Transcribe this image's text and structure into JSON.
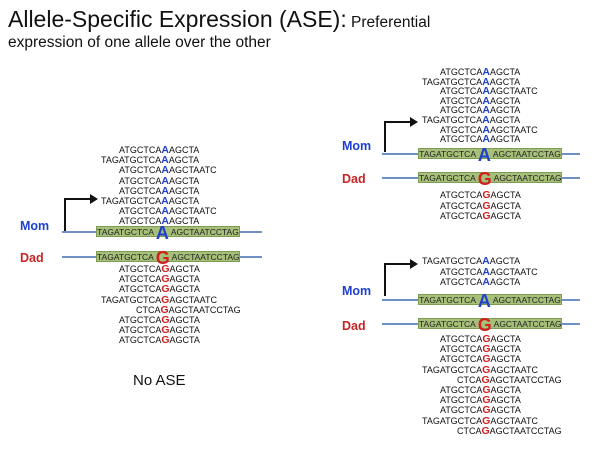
{
  "title": {
    "main": "Allele-Specific Expression (ASE):",
    "sub": " Preferential",
    "line2": "expression of one allele over the other"
  },
  "colors": {
    "mom": "#1f3fcf",
    "dad": "#d22020",
    "chromosome": "#6f90c4",
    "gene": "#a7c079"
  },
  "labels": {
    "mom": "Mom",
    "dad": "Dad"
  },
  "no_ase_caption": "No ASE",
  "left_panel": {
    "mom_gene": {
      "pre": "TAGATGCTCA",
      "allele": "A",
      "post": "AGCTAATCCTAG"
    },
    "dad_gene": {
      "pre": "TAGATGCTCA",
      "allele": "G",
      "post": "AGCTAATCCTAG"
    },
    "mom_reads": [
      {
        "pre": "ATGCTCA",
        "nt": "A",
        "post": "AGCTA"
      },
      {
        "pre": "TAGATGCTCA",
        "nt": "A",
        "post": "AGCTA"
      },
      {
        "pre": "ATGCTCA",
        "nt": "A",
        "post": "AGCTAATC"
      },
      {
        "pre": "ATGCTCA",
        "nt": "A",
        "post": "AGCTA"
      },
      {
        "pre": "ATGCTCA",
        "nt": "A",
        "post": "AGCTA"
      },
      {
        "pre": "TAGATGCTCA",
        "nt": "A",
        "post": "AGCTA"
      },
      {
        "pre": "ATGCTCA",
        "nt": "A",
        "post": "AGCTAATC"
      },
      {
        "pre": "ATGCTCA",
        "nt": "A",
        "post": "AGCTA"
      }
    ],
    "dad_reads": [
      {
        "pre": "ATGCTCA",
        "nt": "G",
        "post": "AGCTA"
      },
      {
        "pre": "ATGCTCA",
        "nt": "G",
        "post": "AGCTA"
      },
      {
        "pre": "ATGCTCA",
        "nt": "G",
        "post": "AGCTA"
      },
      {
        "pre": "TAGATGCTCA",
        "nt": "G",
        "post": "AGCTAATC"
      },
      {
        "pre": "CTCA",
        "nt": "G",
        "post": "AGCTAATCCTAG"
      },
      {
        "pre": "ATGCTCA",
        "nt": "G",
        "post": "AGCTA"
      },
      {
        "pre": "ATGCTCA",
        "nt": "G",
        "post": "AGCTA"
      },
      {
        "pre": "ATGCTCA",
        "nt": "G",
        "post": "AGCTA"
      }
    ]
  },
  "right_top_panel": {
    "mom_gene": {
      "pre": "TAGATGCTCA",
      "allele": "A",
      "post": "AGCTAATCCTAG"
    },
    "dad_gene": {
      "pre": "TAGATGCTCA",
      "allele": "G",
      "post": "AGCTAATCCTAG"
    },
    "mom_reads": [
      {
        "pre": "ATGCTCA",
        "nt": "A",
        "post": "AGCTA"
      },
      {
        "pre": "TAGATGCTCA",
        "nt": "A",
        "post": "AGCTA"
      },
      {
        "pre": "ATGCTCA",
        "nt": "A",
        "post": "AGCTAATC"
      },
      {
        "pre": "ATGCTCA",
        "nt": "A",
        "post": "AGCTA"
      },
      {
        "pre": "ATGCTCA",
        "nt": "A",
        "post": "AGCTA"
      },
      {
        "pre": "TAGATGCTCA",
        "nt": "A",
        "post": "AGCTA"
      },
      {
        "pre": "ATGCTCA",
        "nt": "A",
        "post": "AGCTAATC"
      },
      {
        "pre": "ATGCTCA",
        "nt": "A",
        "post": "AGCTA"
      }
    ],
    "dad_reads": [
      {
        "pre": "ATGCTCA",
        "nt": "G",
        "post": "AGCTA"
      },
      {
        "pre": "ATGCTCA",
        "nt": "G",
        "post": "AGCTA"
      },
      {
        "pre": "ATGCTCA",
        "nt": "G",
        "post": "AGCTA"
      }
    ]
  },
  "right_bottom_panel": {
    "mom_gene": {
      "pre": "TAGATGCTCA",
      "allele": "A",
      "post": "AGCTAATCCTAG"
    },
    "dad_gene": {
      "pre": "TAGATGCTCA",
      "allele": "G",
      "post": "AGCTAATCCTAG"
    },
    "mom_reads": [
      {
        "pre": "TAGATGCTCA",
        "nt": "A",
        "post": "AGCTA"
      },
      {
        "pre": "ATGCTCA",
        "nt": "A",
        "post": "AGCTAATC"
      },
      {
        "pre": "ATGCTCA",
        "nt": "A",
        "post": "AGCTA"
      }
    ],
    "dad_reads": [
      {
        "pre": "ATGCTCA",
        "nt": "G",
        "post": "AGCTA"
      },
      {
        "pre": "ATGCTCA",
        "nt": "G",
        "post": "AGCTA"
      },
      {
        "pre": "ATGCTCA",
        "nt": "G",
        "post": "AGCTA"
      },
      {
        "pre": "TAGATGCTCA",
        "nt": "G",
        "post": "AGCTAATC"
      },
      {
        "pre": "CTCA",
        "nt": "G",
        "post": "AGCTAATCCTAG"
      },
      {
        "pre": "ATGCTCA",
        "nt": "G",
        "post": "AGCTA"
      },
      {
        "pre": "ATGCTCA",
        "nt": "G",
        "post": "AGCTA"
      },
      {
        "pre": "ATGCTCA",
        "nt": "G",
        "post": "AGCTA"
      },
      {
        "pre": "TAGATGCTCA",
        "nt": "G",
        "post": "AGCTAATC"
      },
      {
        "pre": "CTCA",
        "nt": "G",
        "post": "AGCTAATCCTAG"
      }
    ]
  }
}
